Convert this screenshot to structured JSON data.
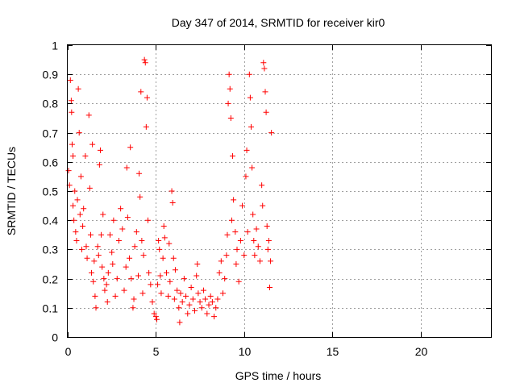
{
  "chart_data": {
    "type": "scatter",
    "title": "Day 347 of 2014, SRMTID for receiver kir0",
    "xlabel": "GPS time / hours",
    "ylabel": "SRMTID / TECUs",
    "xlim": [
      0,
      24
    ],
    "ylim": [
      0,
      1
    ],
    "xticks": [
      0,
      5,
      10,
      15,
      20
    ],
    "yticks": [
      0,
      0.1,
      0.2,
      0.3,
      0.4,
      0.5,
      0.6,
      0.7,
      0.8,
      0.9,
      1
    ],
    "xtick_labels": [
      "0",
      "5",
      "10",
      "15",
      "20"
    ],
    "ytick_labels": [
      "0",
      "0.1",
      "0.2",
      "0.3",
      "0.4",
      "0.5",
      "0.6",
      "0.7",
      "0.8",
      "0.9",
      "1"
    ],
    "grid": true,
    "marker": "+",
    "series_color": "#ff0000",
    "series": [
      {
        "name": "kir0",
        "points": [
          [
            0.05,
            0.57
          ],
          [
            0.1,
            0.52
          ],
          [
            0.15,
            0.88
          ],
          [
            0.2,
            0.81
          ],
          [
            0.22,
            0.77
          ],
          [
            0.25,
            0.66
          ],
          [
            0.3,
            0.62
          ],
          [
            0.3,
            0.45
          ],
          [
            0.35,
            0.4
          ],
          [
            0.4,
            0.5
          ],
          [
            0.45,
            0.36
          ],
          [
            0.5,
            0.33
          ],
          [
            0.55,
            0.47
          ],
          [
            0.6,
            0.85
          ],
          [
            0.65,
            0.7
          ],
          [
            0.7,
            0.42
          ],
          [
            0.75,
            0.55
          ],
          [
            0.8,
            0.3
          ],
          [
            0.85,
            0.38
          ],
          [
            0.9,
            0.44
          ],
          [
            1.0,
            0.62
          ],
          [
            1.05,
            0.31
          ],
          [
            1.1,
            0.27
          ],
          [
            1.2,
            0.76
          ],
          [
            1.25,
            0.51
          ],
          [
            1.3,
            0.35
          ],
          [
            1.35,
            0.22
          ],
          [
            1.4,
            0.66
          ],
          [
            1.45,
            0.19
          ],
          [
            1.5,
            0.26
          ],
          [
            1.55,
            0.14
          ],
          [
            1.6,
            0.1
          ],
          [
            1.7,
            0.31
          ],
          [
            1.75,
            0.28
          ],
          [
            1.8,
            0.59
          ],
          [
            1.85,
            0.64
          ],
          [
            1.9,
            0.35
          ],
          [
            1.95,
            0.24
          ],
          [
            2.0,
            0.42
          ],
          [
            2.05,
            0.2
          ],
          [
            2.1,
            0.16
          ],
          [
            2.2,
            0.18
          ],
          [
            2.25,
            0.12
          ],
          [
            2.3,
            0.22
          ],
          [
            2.4,
            0.35
          ],
          [
            2.5,
            0.29
          ],
          [
            2.55,
            0.25
          ],
          [
            2.6,
            0.4
          ],
          [
            2.7,
            0.14
          ],
          [
            2.8,
            0.2
          ],
          [
            2.9,
            0.33
          ],
          [
            3.0,
            0.44
          ],
          [
            3.1,
            0.37
          ],
          [
            3.2,
            0.16
          ],
          [
            3.3,
            0.24
          ],
          [
            3.35,
            0.58
          ],
          [
            3.4,
            0.41
          ],
          [
            3.5,
            0.27
          ],
          [
            3.55,
            0.65
          ],
          [
            3.6,
            0.2
          ],
          [
            3.7,
            0.1
          ],
          [
            3.75,
            0.13
          ],
          [
            3.8,
            0.31
          ],
          [
            3.9,
            0.36
          ],
          [
            4.0,
            0.21
          ],
          [
            4.05,
            0.56
          ],
          [
            4.1,
            0.48
          ],
          [
            4.15,
            0.84
          ],
          [
            4.2,
            0.33
          ],
          [
            4.25,
            0.15
          ],
          [
            4.3,
            0.28
          ],
          [
            4.35,
            0.95
          ],
          [
            4.4,
            0.94
          ],
          [
            4.45,
            0.72
          ],
          [
            4.5,
            0.82
          ],
          [
            4.55,
            0.4
          ],
          [
            4.6,
            0.22
          ],
          [
            4.7,
            0.18
          ],
          [
            4.8,
            0.12
          ],
          [
            4.9,
            0.08
          ],
          [
            5.0,
            0.07
          ],
          [
            5.05,
            0.06
          ],
          [
            5.1,
            0.18
          ],
          [
            5.15,
            0.33
          ],
          [
            5.2,
            0.3
          ],
          [
            5.25,
            0.21
          ],
          [
            5.3,
            0.15
          ],
          [
            5.4,
            0.27
          ],
          [
            5.45,
            0.38
          ],
          [
            5.5,
            0.34
          ],
          [
            5.6,
            0.22
          ],
          [
            5.7,
            0.14
          ],
          [
            5.75,
            0.32
          ],
          [
            5.8,
            0.19
          ],
          [
            5.9,
            0.5
          ],
          [
            5.95,
            0.46
          ],
          [
            6.0,
            0.27
          ],
          [
            6.05,
            0.13
          ],
          [
            6.1,
            0.23
          ],
          [
            6.2,
            0.16
          ],
          [
            6.3,
            0.1
          ],
          [
            6.35,
            0.05
          ],
          [
            6.4,
            0.15
          ],
          [
            6.5,
            0.12
          ],
          [
            6.6,
            0.2
          ],
          [
            6.7,
            0.14
          ],
          [
            6.8,
            0.08
          ],
          [
            6.9,
            0.11
          ],
          [
            7.0,
            0.17
          ],
          [
            7.1,
            0.13
          ],
          [
            7.2,
            0.09
          ],
          [
            7.3,
            0.21
          ],
          [
            7.35,
            0.25
          ],
          [
            7.4,
            0.15
          ],
          [
            7.5,
            0.12
          ],
          [
            7.6,
            0.1
          ],
          [
            7.7,
            0.16
          ],
          [
            7.8,
            0.13
          ],
          [
            7.9,
            0.08
          ],
          [
            8.0,
            0.11
          ],
          [
            8.1,
            0.14
          ],
          [
            8.2,
            0.12
          ],
          [
            8.3,
            0.07
          ],
          [
            8.4,
            0.1
          ],
          [
            8.5,
            0.13
          ],
          [
            8.6,
            0.22
          ],
          [
            8.7,
            0.26
          ],
          [
            8.8,
            0.15
          ],
          [
            8.9,
            0.2
          ],
          [
            9.0,
            0.28
          ],
          [
            9.05,
            0.35
          ],
          [
            9.1,
            0.8
          ],
          [
            9.15,
            0.9
          ],
          [
            9.2,
            0.85
          ],
          [
            9.25,
            0.75
          ],
          [
            9.3,
            0.4
          ],
          [
            9.35,
            0.62
          ],
          [
            9.4,
            0.47
          ],
          [
            9.5,
            0.36
          ],
          [
            9.55,
            0.25
          ],
          [
            9.6,
            0.3
          ],
          [
            9.7,
            0.19
          ],
          [
            9.8,
            0.33
          ],
          [
            9.9,
            0.45
          ],
          [
            10.0,
            0.28
          ],
          [
            10.1,
            0.55
          ],
          [
            10.15,
            0.64
          ],
          [
            10.2,
            0.36
          ],
          [
            10.3,
            0.9
          ],
          [
            10.35,
            0.82
          ],
          [
            10.4,
            0.72
          ],
          [
            10.45,
            0.58
          ],
          [
            10.5,
            0.42
          ],
          [
            10.55,
            0.33
          ],
          [
            10.6,
            0.28
          ],
          [
            10.7,
            0.37
          ],
          [
            10.8,
            0.31
          ],
          [
            10.9,
            0.26
          ],
          [
            11.0,
            0.52
          ],
          [
            11.05,
            0.45
          ],
          [
            11.1,
            0.94
          ],
          [
            11.15,
            0.92
          ],
          [
            11.2,
            0.84
          ],
          [
            11.25,
            0.77
          ],
          [
            11.3,
            0.38
          ],
          [
            11.35,
            0.3
          ],
          [
            11.4,
            0.33
          ],
          [
            11.45,
            0.17
          ],
          [
            11.5,
            0.26
          ],
          [
            11.55,
            0.7
          ]
        ]
      }
    ]
  }
}
